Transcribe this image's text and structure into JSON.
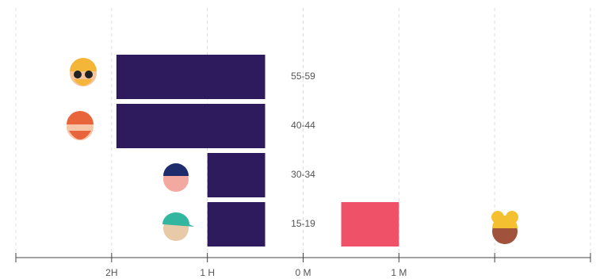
{
  "chart_data": {
    "type": "bar",
    "categories": [
      "55-59",
      "40-44",
      "30-34",
      "15-19"
    ],
    "series": [
      {
        "color": "#2d1b5e",
        "values": [
          -1.95,
          -1.95,
          -1.0,
          -1.0
        ]
      },
      {
        "color": "#ef5169",
        "values": [
          null,
          null,
          null,
          1.0
        ]
      }
    ],
    "xlim": [
      -3,
      3
    ],
    "xticks": [
      -3,
      {
        "value": -2,
        "label": "2H"
      },
      {
        "value": -1,
        "label": "1 H"
      },
      {
        "value": 0,
        "label": "0 M"
      },
      {
        "value": 1,
        "label": "1 M"
      },
      2,
      3
    ],
    "grid": true
  }
}
